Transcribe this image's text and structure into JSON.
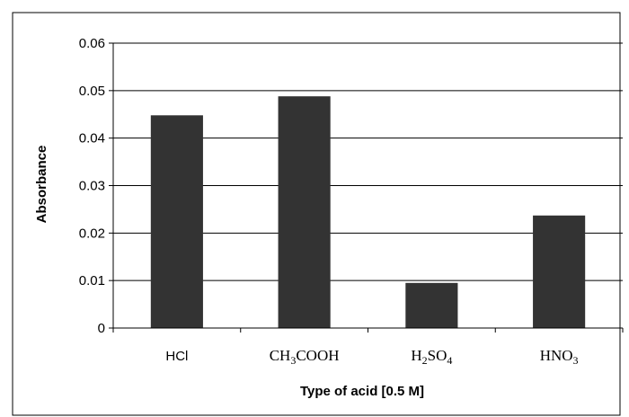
{
  "chart_data": {
    "type": "bar",
    "categories": [
      "HCl",
      "CH3COOH",
      "H2SO4",
      "HNO3"
    ],
    "category_display": [
      {
        "style": "sans",
        "parts": [
          {
            "t": "HCl"
          }
        ]
      },
      {
        "style": "serif",
        "parts": [
          {
            "t": "CH"
          },
          {
            "t": "3",
            "sub": true
          },
          {
            "t": "COOH"
          }
        ]
      },
      {
        "style": "serif",
        "parts": [
          {
            "t": "H"
          },
          {
            "t": "2",
            "sub": true
          },
          {
            "t": "SO"
          },
          {
            "t": "4",
            "sub": true
          }
        ]
      },
      {
        "style": "serif",
        "parts": [
          {
            "t": "HNO"
          },
          {
            "t": "3",
            "sub": true
          }
        ]
      }
    ],
    "values": [
      0.0448,
      0.0488,
      0.0095,
      0.0237
    ],
    "title": "",
    "xlabel": "Type of acid [0.5 M]",
    "ylabel": "Absorbance",
    "ylim": [
      0,
      0.06
    ],
    "yticks": [
      "0",
      "0.01",
      "0.02",
      "0.03",
      "0.04",
      "0.05",
      "0.06"
    ],
    "grid": true,
    "legend": "none",
    "colors": {
      "bar": "#333333",
      "grid": "#000000",
      "frame": "#000000"
    }
  }
}
